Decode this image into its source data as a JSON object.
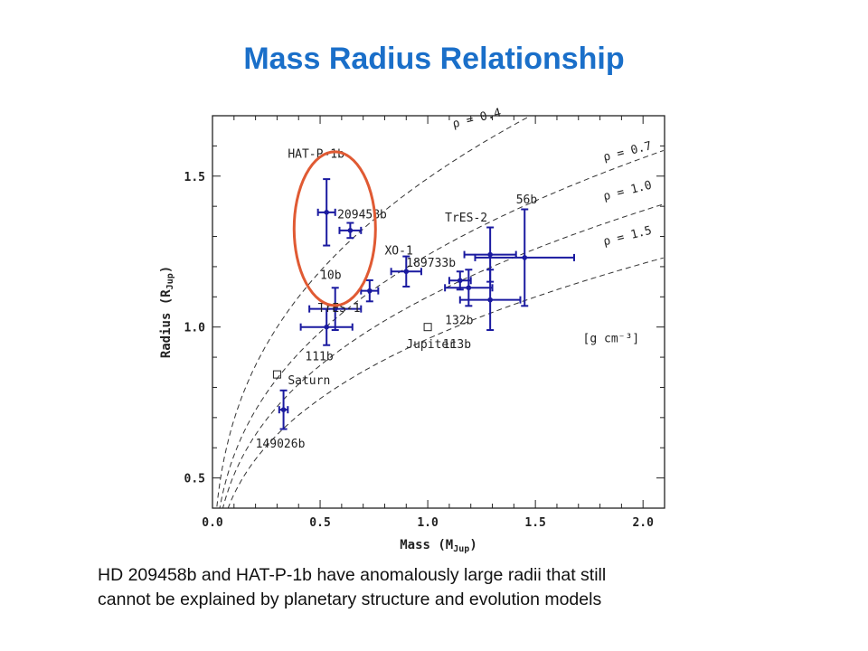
{
  "slide": {
    "title": "Mass Radius Relationship",
    "caption_line1": "HD 209458b and HAT-P-1b have anomalously large radii that still",
    "caption_line2": "cannot be explained by planetary structure and evolution models",
    "title_color": "#1a6fc9",
    "highlight_color": "#e05a33"
  },
  "chart_data": {
    "type": "scatter",
    "xlabel": "Mass (M",
    "xlabel_sub": "Jup",
    "xlabel_close": ")",
    "ylabel": "Radius (R",
    "ylabel_sub": "Jup",
    "ylabel_close": ")",
    "xlim": [
      0.0,
      2.1
    ],
    "ylim": [
      0.4,
      1.7
    ],
    "xticks": [
      0.0,
      0.5,
      1.0,
      1.5,
      2.0
    ],
    "xtick_labels": [
      "0.0",
      "0.5",
      "1.0",
      "1.5",
      "2.0"
    ],
    "yticks": [
      0.5,
      1.0,
      1.5
    ],
    "ytick_labels": [
      "0.5",
      "1.0",
      "1.5"
    ],
    "point_color": "#1a1aa0",
    "density_unit": "[g cm⁻³]",
    "density_curves": [
      {
        "rho": 0.4,
        "label": "ρ = 0.4"
      },
      {
        "rho": 0.7,
        "label": "ρ = 0.7"
      },
      {
        "rho": 1.0,
        "label": "ρ = 1.0"
      },
      {
        "rho": 1.5,
        "label": "ρ = 1.5"
      }
    ],
    "planets": [
      {
        "label": "HAT-P-1b",
        "x": 0.53,
        "y": 1.38,
        "xerr": 0.04,
        "yerr": 0.11
      },
      {
        "label": "209458b",
        "x": 0.64,
        "y": 1.32,
        "xerr": 0.05,
        "yerr": 0.025
      },
      {
        "label": "XO-1",
        "x": 0.9,
        "y": 1.184,
        "xerr": 0.07,
        "yerr": 0.05
      },
      {
        "label": "10b",
        "x": 0.57,
        "y": 1.06,
        "xerr": 0.12,
        "yerr": 0.07
      },
      {
        "label": "111b",
        "x": 0.53,
        "y": 1.0,
        "xerr": 0.12,
        "yerr": 0.06
      },
      {
        "label": "TrES-1",
        "x": 0.73,
        "y": 1.12,
        "xerr": 0.04,
        "yerr": 0.035
      },
      {
        "label": "189733b",
        "x": 1.15,
        "y": 1.154,
        "xerr": 0.05,
        "yerr": 0.03
      },
      {
        "label": "132b",
        "x": 1.19,
        "y": 1.13,
        "xerr": 0.11,
        "yerr": 0.06
      },
      {
        "label": "TrES-2",
        "x": 1.29,
        "y": 1.24,
        "xerr": 0.12,
        "yerr": 0.09
      },
      {
        "label": "113b",
        "x": 1.29,
        "y": 1.09,
        "xerr": 0.14,
        "yerr": 0.1
      },
      {
        "label": "56b",
        "x": 1.45,
        "y": 1.23,
        "xerr": 0.23,
        "yerr": 0.16
      },
      {
        "label": "149026b",
        "x": 0.33,
        "y": 0.726,
        "xerr": 0.02,
        "yerr": 0.064
      }
    ],
    "reference_planets": [
      {
        "label": "Saturn",
        "x": 0.3,
        "y": 0.843
      },
      {
        "label": "Jupiter",
        "x": 1.0,
        "y": 1.0
      }
    ]
  }
}
